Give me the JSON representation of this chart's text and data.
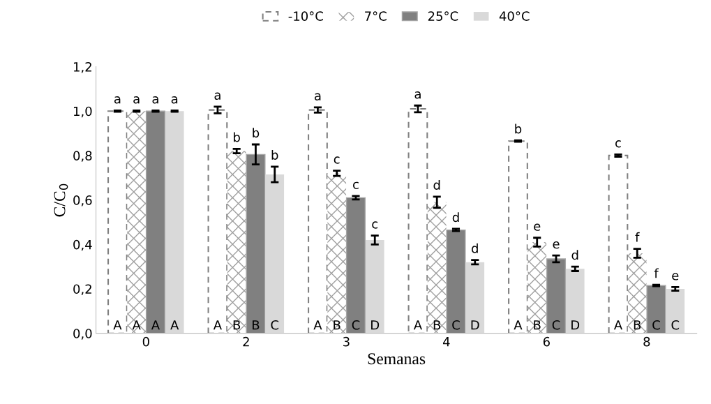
{
  "chart_data": {
    "type": "bar",
    "xlabel": "Semanas",
    "ylabel": "C/C$_{0}$",
    "categories": [
      "0",
      "2",
      "3",
      "4",
      "6",
      "8"
    ],
    "series": [
      {
        "name": "-10°C",
        "color": "#ffffff",
        "values": [
          1.0,
          1.005,
          1.005,
          1.01,
          0.865,
          0.8
        ],
        "errors": [
          0.003,
          0.015,
          0.012,
          0.015,
          0.003,
          0.005
        ],
        "value_labels": [
          "a",
          "a",
          "a",
          "a",
          "b",
          "c"
        ]
      },
      {
        "name": "7°C",
        "color": "#ffffff",
        "values": [
          1.0,
          0.82,
          0.72,
          0.59,
          0.41,
          0.36
        ],
        "errors": [
          0.003,
          0.01,
          0.012,
          0.025,
          0.02,
          0.02
        ],
        "value_labels": [
          "a",
          "b",
          "c",
          "d",
          "e",
          "f"
        ]
      },
      {
        "name": "25°C",
        "color": "#808080",
        "values": [
          1.0,
          0.805,
          0.61,
          0.465,
          0.335,
          0.215
        ],
        "errors": [
          0.003,
          0.045,
          0.008,
          0.005,
          0.015,
          0.003
        ],
        "value_labels": [
          "a",
          "b",
          "c",
          "d",
          "e",
          "f"
        ]
      },
      {
        "name": "40°C",
        "color": "#d9d9d9",
        "values": [
          1.0,
          0.715,
          0.42,
          0.32,
          0.29,
          0.2
        ],
        "errors": [
          0.003,
          0.035,
          0.02,
          0.01,
          0.01,
          0.008
        ],
        "value_labels": [
          "a",
          "b",
          "c",
          "d",
          "d",
          "e"
        ]
      }
    ],
    "annotations": [
      {
        "text": "A",
        "x": "0",
        "y": 0
      },
      {
        "text": "A",
        "x": "0",
        "y": 0
      },
      {
        "text": "A",
        "x": "0",
        "y": 0
      },
      {
        "text": "A",
        "x": "0",
        "y": 0
      },
      {
        "text": "A",
        "x": "2",
        "y": 0
      },
      {
        "text": "B",
        "x": "2",
        "y": 0
      },
      {
        "text": "B",
        "x": "2",
        "y": 0
      },
      {
        "text": "C",
        "x": "2",
        "y": 0
      },
      {
        "text": "A",
        "x": "3",
        "y": 0
      },
      {
        "text": "B",
        "x": "3",
        "y": 0
      },
      {
        "text": "C",
        "x": "3",
        "y": 0
      },
      {
        "text": "D",
        "x": "3",
        "y": 0
      },
      {
        "text": "A",
        "x": "4",
        "y": 0
      },
      {
        "text": "B",
        "x": "4",
        "y": 0
      },
      {
        "text": "C",
        "x": "4",
        "y": 0
      },
      {
        "text": "D",
        "x": "4",
        "y": 0
      },
      {
        "text": "A",
        "x": "6",
        "y": 0
      },
      {
        "text": "B",
        "x": "6",
        "y": 0
      },
      {
        "text": "C",
        "x": "6",
        "y": 0
      },
      {
        "text": "D",
        "x": "6",
        "y": 0
      },
      {
        "text": "A",
        "x": "8",
        "y": 0
      },
      {
        "text": "B",
        "x": "8",
        "y": 0
      },
      {
        "text": "C",
        "x": "8",
        "y": 0
      },
      {
        "text": "C",
        "x": "8",
        "y": 0
      }
    ],
    "ylim": [
      0,
      1.2
    ],
    "yticks": [
      {
        "value": 0,
        "label": "0,0"
      },
      {
        "value": 0.2,
        "label": "0,2"
      },
      {
        "value": 0.4,
        "label": "0,4"
      },
      {
        "value": 0.6,
        "label": "0,6"
      },
      {
        "value": 0.8,
        "label": "0,8"
      },
      {
        "value": 1.0,
        "label": "1,0"
      },
      {
        "value": 1.2,
        "label": "1,2"
      }
    ],
    "grid": false,
    "legend": "top"
  }
}
